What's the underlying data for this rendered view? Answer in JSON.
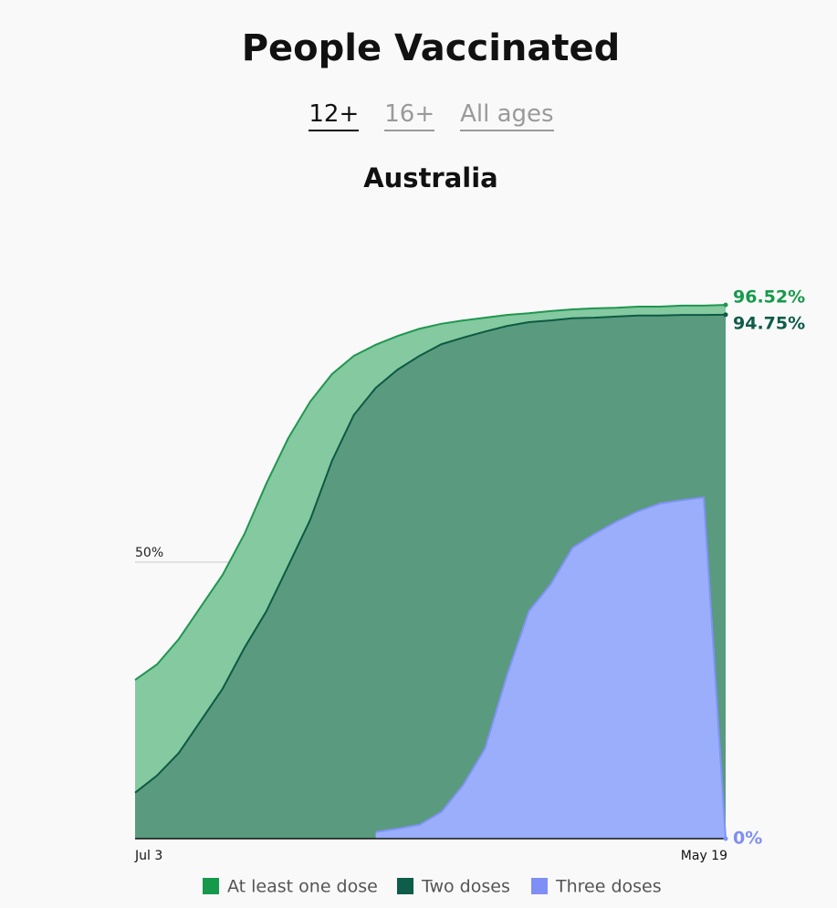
{
  "tabs": [
    "12+",
    "16+",
    "All ages"
  ],
  "active_tab": "12+",
  "chart_data": {
    "type": "area",
    "title": "People Vaccinated",
    "subtitle": "Australia",
    "categories": [
      "Jul 3",
      null,
      null,
      null,
      null,
      null,
      null,
      null,
      null,
      null,
      null,
      null,
      null,
      null,
      null,
      null,
      null,
      null,
      null,
      null,
      null,
      null,
      null,
      null,
      null,
      null,
      null,
      "May 19"
    ],
    "ylim": [
      0,
      100
    ],
    "yticks": [
      {
        "value": 50,
        "label": "50%"
      }
    ],
    "series": [
      {
        "name": "At least one dose",
        "color": "#17994c",
        "fill": "#85c9a0",
        "stroke": "#1f9650",
        "values": [
          28.7,
          31.5,
          36.1,
          41.9,
          47.7,
          55.1,
          64.2,
          72.4,
          79.0,
          84.0,
          87.3,
          89.3,
          90.9,
          92.2,
          93.1,
          93.7,
          94.2,
          94.7,
          95.0,
          95.4,
          95.7,
          95.9,
          96.0,
          96.2,
          96.2,
          96.4,
          96.4,
          96.52
        ],
        "value_labels": [
          null,
          null,
          null,
          null,
          null,
          null,
          null,
          null,
          null,
          null,
          null,
          null,
          null,
          null,
          null,
          null,
          null,
          null,
          null,
          null,
          null,
          null,
          null,
          null,
          null,
          null,
          null,
          "96.52%"
        ]
      },
      {
        "name": "Two doses",
        "color": "#0e5c4a",
        "fill": "#5a9a7e",
        "stroke": "#0d5a44",
        "values": [
          8.3,
          11.4,
          15.5,
          21.3,
          27.1,
          34.5,
          41.1,
          49.3,
          57.6,
          68.3,
          76.6,
          81.5,
          84.8,
          87.3,
          89.4,
          90.6,
          91.7,
          92.7,
          93.4,
          93.7,
          94.1,
          94.2,
          94.4,
          94.6,
          94.6,
          94.7,
          94.7,
          94.75
        ],
        "value_labels": [
          null,
          null,
          null,
          null,
          null,
          null,
          null,
          null,
          null,
          null,
          null,
          null,
          null,
          null,
          null,
          null,
          null,
          null,
          null,
          null,
          null,
          null,
          null,
          null,
          null,
          null,
          null,
          "94.75%"
        ]
      },
      {
        "name": "Three doses",
        "color": "#7f8ff5",
        "fill": "#9aaefc",
        "stroke": "#7f93f5",
        "values": [
          null,
          null,
          null,
          null,
          null,
          null,
          null,
          null,
          null,
          null,
          null,
          1.2,
          1.8,
          2.5,
          4.8,
          9.7,
          16.3,
          29.5,
          41.1,
          46.0,
          52.6,
          55.1,
          57.3,
          59.2,
          60.6,
          61.2,
          61.7,
          0
        ],
        "value_labels": [
          null,
          null,
          null,
          null,
          null,
          null,
          null,
          null,
          null,
          null,
          null,
          null,
          null,
          null,
          null,
          null,
          null,
          null,
          null,
          null,
          null,
          null,
          null,
          null,
          null,
          null,
          null,
          "0%"
        ]
      }
    ]
  }
}
